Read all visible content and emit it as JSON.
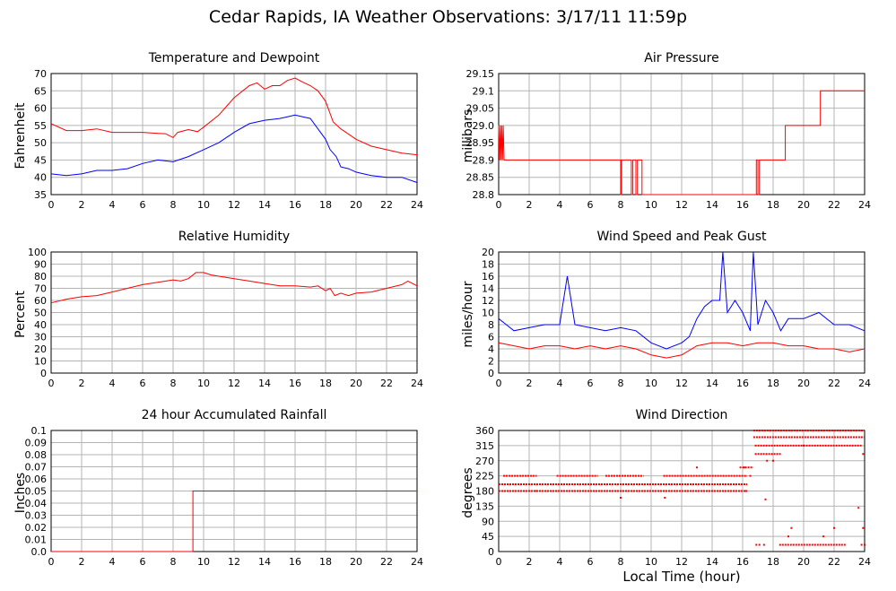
{
  "page_title": "Cedar Rapids, IA Weather Observations: 3/17/11 11:59p",
  "x_axis_title": "Local Time (hour)",
  "colors": {
    "red": "#ff0000",
    "blue": "#0000ff",
    "grid": "#b4b4b4"
  },
  "chart_data": [
    {
      "id": "temp",
      "type": "line",
      "title": "Temperature and Dewpoint",
      "ylabel": "Fahrenheit",
      "xlim": [
        0,
        24
      ],
      "ylim": [
        35,
        70
      ],
      "xticks": [
        0,
        2,
        4,
        6,
        8,
        10,
        12,
        14,
        16,
        18,
        20,
        22,
        24
      ],
      "yticks": [
        35,
        40,
        45,
        50,
        55,
        60,
        65,
        70
      ],
      "yticklabels": [
        "35",
        "40",
        "45",
        "50",
        "55",
        "60",
        "65",
        "70"
      ],
      "grid": true,
      "series": [
        {
          "color": "#ff0000",
          "x": [
            0,
            1,
            2,
            3,
            4,
            5,
            6,
            7,
            7.5,
            8,
            8.3,
            9,
            9.6,
            10,
            11,
            12,
            13,
            13.5,
            14,
            14.5,
            15,
            15.5,
            16,
            16.5,
            17,
            17.5,
            18,
            18.5,
            19,
            20,
            21,
            22,
            23,
            24
          ],
          "y": [
            55.5,
            53.5,
            53.5,
            54,
            53,
            53,
            53,
            52.7,
            52.6,
            51.5,
            53,
            53.8,
            53.2,
            54.5,
            58,
            63,
            66.5,
            67.3,
            65.5,
            66.5,
            66.5,
            68,
            68.7,
            67.5,
            66.5,
            65,
            62,
            56,
            54,
            51,
            49,
            48,
            47,
            46.5
          ]
        },
        {
          "color": "#0000ff",
          "x": [
            0,
            1,
            2,
            3,
            4,
            5,
            6,
            7,
            8,
            9,
            10,
            11,
            12,
            13,
            14,
            15,
            15.5,
            16,
            16.5,
            17,
            17.5,
            18,
            18.3,
            18.7,
            19,
            19.5,
            20,
            20.5,
            21,
            22,
            23,
            24
          ],
          "y": [
            41,
            40.5,
            41,
            42,
            42,
            42.5,
            44,
            45,
            44.5,
            46,
            48,
            50,
            53,
            55.5,
            56.5,
            57,
            57.5,
            58,
            57.5,
            57,
            54,
            51,
            48,
            46,
            43,
            42.5,
            41.5,
            41,
            40.5,
            40,
            40,
            38.5
          ]
        }
      ]
    },
    {
      "id": "pressure",
      "type": "line",
      "title": "Air Pressure",
      "ylabel": "millibars",
      "xlim": [
        0,
        24
      ],
      "ylim": [
        28.8,
        29.15
      ],
      "xticks": [
        0,
        2,
        4,
        6,
        8,
        10,
        12,
        14,
        16,
        18,
        20,
        22,
        24
      ],
      "yticks": [
        28.8,
        28.85,
        28.9,
        28.95,
        29.0,
        29.05,
        29.1,
        29.15
      ],
      "yticklabels": [
        "28.8",
        "28.85",
        "28.9",
        "28.95",
        "29.0",
        "29.05",
        "29.1",
        "29.15"
      ],
      "grid": true,
      "series": [
        {
          "color": "#ff0000",
          "x": [
            0,
            0.05,
            0.1,
            0.15,
            0.2,
            0.25,
            0.3,
            0.35,
            8,
            8,
            8.05,
            8.05,
            8.7,
            8.7,
            8.8,
            8.8,
            9.0,
            9.0,
            9.1,
            9.1,
            9.4,
            9.4,
            9.5,
            9.5,
            16.9,
            16.9,
            17.0,
            17.0,
            17.1,
            17.1,
            18.8,
            18.8,
            21.1,
            21.1,
            24
          ],
          "y": [
            29.0,
            28.9,
            29.0,
            28.9,
            29.0,
            28.9,
            29.0,
            28.9,
            28.9,
            28.8,
            28.8,
            28.9,
            28.9,
            28.8,
            28.8,
            28.9,
            28.9,
            28.8,
            28.8,
            28.9,
            28.9,
            28.8,
            28.8,
            28.8,
            28.8,
            28.9,
            28.9,
            28.8,
            28.8,
            28.9,
            28.9,
            29.0,
            29.0,
            29.1,
            29.1
          ]
        }
      ]
    },
    {
      "id": "humidity",
      "type": "line",
      "title": "Relative Humidity",
      "ylabel": "Percent",
      "xlim": [
        0,
        24
      ],
      "ylim": [
        0,
        100
      ],
      "xticks": [
        0,
        2,
        4,
        6,
        8,
        10,
        12,
        14,
        16,
        18,
        20,
        22,
        24
      ],
      "yticks": [
        0,
        10,
        20,
        30,
        40,
        50,
        60,
        70,
        80,
        90,
        100
      ],
      "yticklabels": [
        "0",
        "10",
        "20",
        "30",
        "40",
        "50",
        "60",
        "70",
        "80",
        "90",
        "100"
      ],
      "grid": true,
      "series": [
        {
          "color": "#ff0000",
          "x": [
            0,
            1,
            2,
            3,
            4,
            5,
            6,
            7,
            8,
            8.5,
            9,
            9.5,
            10,
            10.5,
            11,
            12,
            13,
            14,
            15,
            16,
            17,
            17.5,
            18,
            18.3,
            18.6,
            19,
            19.5,
            20,
            21,
            22,
            23,
            23.4,
            24
          ],
          "y": [
            58,
            61,
            63,
            64,
            67,
            70,
            73,
            75,
            77,
            76,
            78,
            83,
            83,
            81,
            80,
            78,
            76,
            74,
            72,
            72,
            71,
            72,
            68,
            70,
            64,
            66,
            64,
            66,
            67,
            70,
            73,
            76,
            72
          ]
        }
      ]
    },
    {
      "id": "wind",
      "type": "line",
      "title": "Wind Speed and Peak Gust",
      "ylabel": "miles/hour",
      "xlim": [
        0,
        24
      ],
      "ylim": [
        0,
        20
      ],
      "xticks": [
        0,
        2,
        4,
        6,
        8,
        10,
        12,
        14,
        16,
        18,
        20,
        22,
        24
      ],
      "yticks": [
        0,
        2,
        4,
        6,
        8,
        10,
        12,
        14,
        16,
        18,
        20
      ],
      "yticklabels": [
        "0",
        "2",
        "4",
        "6",
        "8",
        "10",
        "12",
        "14",
        "16",
        "18",
        "20"
      ],
      "grid": true,
      "series": [
        {
          "color": "#0000ff",
          "x": [
            0,
            0.5,
            1,
            2,
            3,
            4,
            4.5,
            5,
            6,
            7,
            8,
            9,
            10,
            11,
            12,
            12.5,
            13,
            13.5,
            14,
            14.5,
            14.7,
            15,
            15.5,
            16,
            16.5,
            16.7,
            17,
            17.5,
            18,
            18.5,
            19,
            20,
            21,
            22,
            23,
            24
          ],
          "y": [
            9,
            8,
            7,
            7.5,
            8,
            8,
            16,
            8,
            7.5,
            7,
            7.5,
            7,
            5,
            4,
            5,
            6,
            9,
            11,
            12,
            12,
            20,
            10,
            12,
            10,
            7,
            20,
            8,
            12,
            10,
            7,
            9,
            9,
            10,
            8,
            8,
            7
          ]
        },
        {
          "color": "#ff0000",
          "x": [
            0,
            1,
            2,
            3,
            4,
            5,
            6,
            7,
            8,
            9,
            10,
            11,
            12,
            13,
            14,
            15,
            16,
            17,
            18,
            19,
            20,
            21,
            22,
            23,
            24
          ],
          "y": [
            5,
            4.5,
            4,
            4.5,
            4.5,
            4,
            4.5,
            4,
            4.5,
            4,
            3,
            2.5,
            3,
            4.5,
            5,
            5,
            4.5,
            5,
            5,
            4.5,
            4.5,
            4,
            4,
            3.5,
            4
          ]
        }
      ]
    },
    {
      "id": "rain",
      "type": "line",
      "title": "24 hour Accumulated Rainfall",
      "ylabel": "Inches",
      "xlim": [
        0,
        24
      ],
      "ylim": [
        0,
        0.1
      ],
      "xticks": [
        0,
        2,
        4,
        6,
        8,
        10,
        12,
        14,
        16,
        18,
        20,
        22,
        24
      ],
      "yticks": [
        0,
        0.01,
        0.02,
        0.03,
        0.04,
        0.05,
        0.06,
        0.07,
        0.08,
        0.09,
        0.1
      ],
      "yticklabels": [
        "0.0",
        "0.01",
        "0.02",
        "0.03",
        "0.04",
        "0.05",
        "0.06",
        "0.07",
        "0.08",
        "0.09",
        "0.1"
      ],
      "grid": true,
      "series": [
        {
          "color": "#ff0000",
          "x": [
            0,
            9.3,
            9.3,
            24
          ],
          "y": [
            0,
            0,
            0.05,
            0.05
          ]
        }
      ]
    },
    {
      "id": "winddir",
      "type": "scatter",
      "title": "Wind Direction",
      "ylabel": "degrees",
      "xlim": [
        0,
        24
      ],
      "ylim": [
        0,
        360
      ],
      "xticks": [
        0,
        2,
        4,
        6,
        8,
        10,
        12,
        14,
        16,
        18,
        20,
        22,
        24
      ],
      "yticks": [
        0,
        45,
        90,
        135,
        180,
        225,
        270,
        315,
        360
      ],
      "yticklabels": [
        "0",
        "45",
        "90",
        "135",
        "180",
        "225",
        "270",
        "315",
        "360"
      ],
      "grid": true,
      "series": [
        {
          "color": "#ff0000",
          "segments": [
            {
              "y": 200,
              "x0": 0,
              "x1": 16.3
            },
            {
              "y": 180,
              "x0": 0,
              "x1": 16.3
            },
            {
              "y": 225,
              "x0": 0.3,
              "x1": 2.5
            },
            {
              "y": 225,
              "x0": 3.8,
              "x1": 6.5
            },
            {
              "y": 225,
              "x0": 7.0,
              "x1": 9.5
            },
            {
              "y": 225,
              "x0": 10.8,
              "x1": 16.3
            },
            {
              "y": 250,
              "x0": 15.8,
              "x1": 16.7
            },
            {
              "y": 360,
              "x0": 16.7,
              "x1": 24
            },
            {
              "y": 340,
              "x0": 16.7,
              "x1": 24
            },
            {
              "y": 315,
              "x0": 16.8,
              "x1": 23.8
            },
            {
              "y": 290,
              "x0": 16.8,
              "x1": 18.5
            },
            {
              "y": 20,
              "x0": 18.4,
              "x1": 22.8
            }
          ],
          "points": [
            {
              "x": 2.4,
              "y": 180
            },
            {
              "x": 8.0,
              "y": 160
            },
            {
              "x": 10.9,
              "y": 160
            },
            {
              "x": 13.0,
              "y": 250
            },
            {
              "x": 16.1,
              "y": 250
            },
            {
              "x": 16.2,
              "y": 180
            },
            {
              "x": 16.5,
              "y": 225
            },
            {
              "x": 17.5,
              "y": 155
            },
            {
              "x": 16.9,
              "y": 20
            },
            {
              "x": 17.1,
              "y": 20
            },
            {
              "x": 17.4,
              "y": 20
            },
            {
              "x": 17.6,
              "y": 270
            },
            {
              "x": 18.0,
              "y": 270
            },
            {
              "x": 19.2,
              "y": 70
            },
            {
              "x": 19.0,
              "y": 45
            },
            {
              "x": 21.3,
              "y": 45
            },
            {
              "x": 22.0,
              "y": 70
            },
            {
              "x": 23.6,
              "y": 130
            },
            {
              "x": 23.9,
              "y": 70
            },
            {
              "x": 23.8,
              "y": 20
            },
            {
              "x": 24.0,
              "y": 20
            },
            {
              "x": 23.9,
              "y": 290
            },
            {
              "x": 20.0,
              "y": 315
            }
          ]
        }
      ]
    }
  ]
}
